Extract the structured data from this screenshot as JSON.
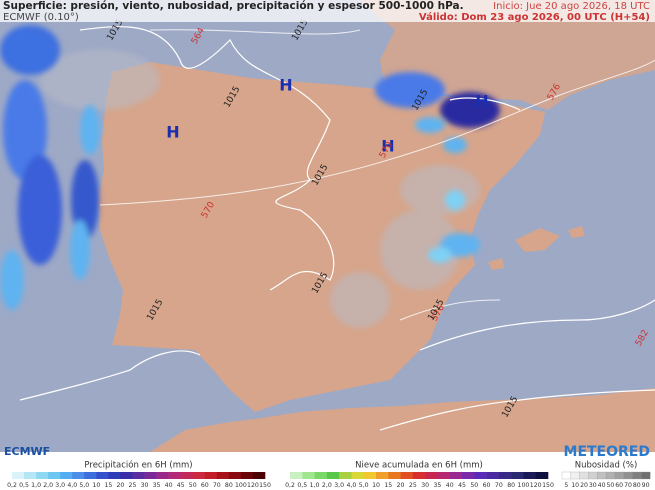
{
  "header": {
    "title": "Superficie: presión, viento, nubosidad, precipitación y espesor 500-1000 hPa.",
    "model": "ECMWF (0.10°)",
    "init": "Inicio: Jue 20 ago 2026, 18 UTC",
    "valid": "Válido: Dom 23 ago 2026, 00 UTC (H+54)"
  },
  "map_labels": [
    {
      "text": "1015"
    },
    {
      "text": "564"
    },
    {
      "text": "1015"
    },
    {
      "text": "H"
    },
    {
      "text": "H"
    },
    {
      "text": "H"
    },
    {
      "text": "H"
    },
    {
      "text": "1015"
    },
    {
      "text": "570"
    },
    {
      "text": "570"
    },
    {
      "text": "1015"
    },
    {
      "text": "1015"
    },
    {
      "text": "576"
    },
    {
      "text": "576"
    },
    {
      "text": "1015"
    },
    {
      "text": "582"
    },
    {
      "text": "1015"
    },
    {
      "text": "1015"
    },
    {
      "text": "1015"
    }
  ],
  "footer": {
    "logo_left": "ECMWF",
    "logo_right": "METEORED",
    "legends": [
      {
        "title": "Precipitación en 6H (mm)",
        "ticks": [
          "0,2",
          "0,5",
          "1,0",
          "2,0",
          "3,0",
          "4,0",
          "5,0",
          "10",
          "15",
          "20",
          "25",
          "30",
          "35",
          "40",
          "45",
          "50",
          "60",
          "70",
          "80",
          "100",
          "120",
          "150"
        ]
      },
      {
        "title": "Nieve acumulada en 6H (mm)",
        "ticks": [
          "0,2",
          "0,5",
          "1,0",
          "2,0",
          "3,0",
          "4,0",
          "5,0",
          "10",
          "15",
          "20",
          "25",
          "30",
          "35",
          "40",
          "45",
          "50",
          "60",
          "70",
          "80",
          "100",
          "120",
          "150"
        ]
      },
      {
        "title": "Nubosidad (%)",
        "ticks": [
          "5",
          "10",
          "20",
          "30",
          "40",
          "50",
          "60",
          "70",
          "80",
          "90"
        ]
      }
    ]
  }
}
